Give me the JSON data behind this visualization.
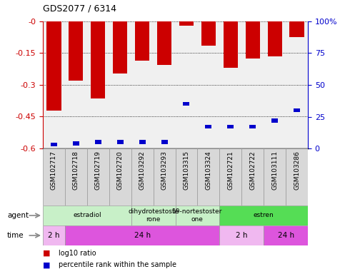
{
  "title": "GDS2077 / 6314",
  "samples": [
    "GSM102717",
    "GSM102718",
    "GSM102719",
    "GSM102720",
    "GSM103292",
    "GSM103293",
    "GSM103315",
    "GSM103324",
    "GSM102721",
    "GSM102722",
    "GSM103111",
    "GSM103286"
  ],
  "log10_ratio": [
    -0.42,
    -0.28,
    -0.365,
    -0.245,
    -0.185,
    -0.205,
    -0.02,
    -0.115,
    -0.22,
    -0.175,
    -0.165,
    -0.075
  ],
  "percentile_rank": [
    3,
    4,
    5,
    5,
    5,
    5,
    35,
    17,
    17,
    17,
    22,
    30
  ],
  "ylim_left": [
    -0.6,
    0.0
  ],
  "yticks_left": [
    0.0,
    -0.15,
    -0.3,
    -0.45,
    -0.6
  ],
  "ylim_right": [
    0,
    100
  ],
  "yticks_right": [
    100,
    75,
    50,
    25,
    0
  ],
  "ytick_labels_right": [
    "100%",
    "75",
    "50",
    "25",
    "0"
  ],
  "agent_groups": [
    {
      "label": "estradiol",
      "start": 0,
      "end": 4,
      "color": "#c8f0c8",
      "text": "estradiol"
    },
    {
      "label": "dihydrotestosterone",
      "start": 4,
      "end": 6,
      "color": "#c8f0c8",
      "text": "dihydrotestoste\nrone"
    },
    {
      "label": "19-nortestosterone",
      "start": 6,
      "end": 8,
      "color": "#c8f0c8",
      "text": "19-nortestoster\none"
    },
    {
      "label": "estren",
      "start": 8,
      "end": 12,
      "color": "#55dd55",
      "text": "estren"
    }
  ],
  "time_groups": [
    {
      "label": "2 h",
      "start": 0,
      "end": 1,
      "color": "#f0b8f0"
    },
    {
      "label": "24 h",
      "start": 1,
      "end": 8,
      "color": "#dd55dd"
    },
    {
      "label": "2 h",
      "start": 8,
      "end": 10,
      "color": "#f0b8f0"
    },
    {
      "label": "24 h",
      "start": 10,
      "end": 12,
      "color": "#dd55dd"
    }
  ],
  "bar_color": "#cc0000",
  "blue_color": "#0000cc",
  "left_axis_color": "#cc0000",
  "right_axis_color": "#0000cc",
  "legend_red": "log10 ratio",
  "legend_blue": "percentile rank within the sample",
  "background_color": "#ffffff"
}
